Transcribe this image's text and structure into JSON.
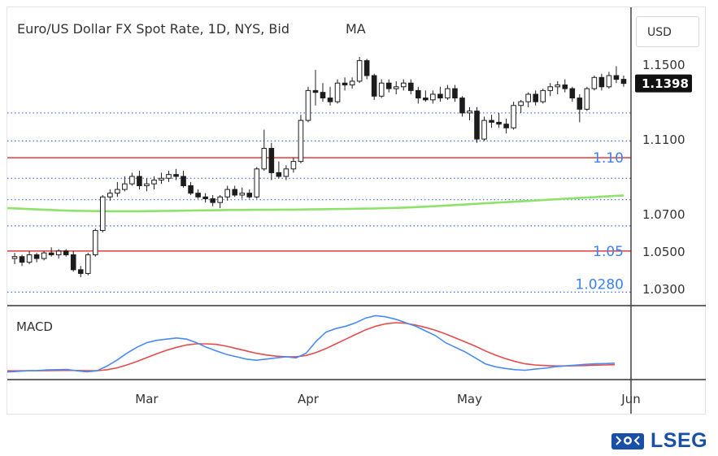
{
  "header": {
    "title": "Euro/US Dollar FX Spot Rate, 1D, NYS, Bid",
    "indicator": "MA",
    "currency": "USD",
    "last_price": "1.1398"
  },
  "subchart": {
    "label": "MACD"
  },
  "brand": {
    "name": "LSEG",
    "color": "#1a4fa8"
  },
  "colors": {
    "ma_line": "#8ee26a",
    "level_line": "#e34b4b",
    "level_label": "#3b82f6",
    "dotted": "#3b6fe0",
    "macd": "#4a8af4",
    "signal": "#e54b4b",
    "candle_up": "#ffffff",
    "candle_down": "#1c1c1c"
  },
  "chart_data": {
    "type": "candlestick",
    "title": "Euro/US Dollar FX Spot Rate, 1D, NYS, Bid",
    "ylim": [
      1.0225,
      1.1575
    ],
    "price_ticks": [
      "1.1500",
      "1.1100",
      "1.0700",
      "1.0500",
      "1.0300"
    ],
    "x_ticks": [
      {
        "label": "Mar",
        "index": 18
      },
      {
        "label": "Apr",
        "index": 40
      },
      {
        "label": "May",
        "index": 62
      },
      {
        "label": "Jun",
        "index": 84
      }
    ],
    "levels": [
      {
        "value": 1.1,
        "label": "1.10"
      },
      {
        "value": 1.05,
        "label": "1.05"
      }
    ],
    "level_annotations": [
      {
        "value": 1.028,
        "label": "1.0280"
      }
    ],
    "dotted_levels": [
      1.124,
      1.109,
      1.089,
      1.0775,
      1.0635,
      1.028
    ],
    "ohlc": [
      [
        1.046,
        1.049,
        1.043,
        1.047
      ],
      [
        1.047,
        1.048,
        1.042,
        1.044
      ],
      [
        1.044,
        1.05,
        1.043,
        1.048
      ],
      [
        1.048,
        1.049,
        1.044,
        1.046
      ],
      [
        1.046,
        1.05,
        1.045,
        1.049
      ],
      [
        1.049,
        1.052,
        1.047,
        1.048
      ],
      [
        1.048,
        1.051,
        1.046,
        1.05
      ],
      [
        1.05,
        1.051,
        1.047,
        1.048
      ],
      [
        1.048,
        1.05,
        1.039,
        1.04
      ],
      [
        1.04,
        1.042,
        1.036,
        1.038
      ],
      [
        1.038,
        1.049,
        1.037,
        1.048
      ],
      [
        1.048,
        1.062,
        1.047,
        1.061
      ],
      [
        1.061,
        1.08,
        1.06,
        1.079
      ],
      [
        1.079,
        1.083,
        1.077,
        1.081
      ],
      [
        1.081,
        1.087,
        1.079,
        1.083
      ],
      [
        1.083,
        1.09,
        1.082,
        1.086
      ],
      [
        1.086,
        1.092,
        1.085,
        1.09
      ],
      [
        1.09,
        1.093,
        1.083,
        1.085
      ],
      [
        1.085,
        1.089,
        1.082,
        1.086
      ],
      [
        1.086,
        1.09,
        1.083,
        1.088
      ],
      [
        1.088,
        1.092,
        1.086,
        1.089
      ],
      [
        1.089,
        1.093,
        1.087,
        1.091
      ],
      [
        1.091,
        1.094,
        1.088,
        1.09
      ],
      [
        1.09,
        1.093,
        1.084,
        1.085
      ],
      [
        1.085,
        1.087,
        1.08,
        1.081
      ],
      [
        1.081,
        1.083,
        1.078,
        1.079
      ],
      [
        1.079,
        1.081,
        1.076,
        1.078
      ],
      [
        1.078,
        1.08,
        1.074,
        1.076
      ],
      [
        1.076,
        1.08,
        1.073,
        1.079
      ],
      [
        1.079,
        1.085,
        1.077,
        1.083
      ],
      [
        1.083,
        1.085,
        1.079,
        1.08
      ],
      [
        1.08,
        1.084,
        1.078,
        1.081
      ],
      [
        1.081,
        1.083,
        1.078,
        1.079
      ],
      [
        1.079,
        1.095,
        1.078,
        1.094
      ],
      [
        1.094,
        1.115,
        1.093,
        1.105
      ],
      [
        1.105,
        1.108,
        1.088,
        1.092
      ],
      [
        1.092,
        1.098,
        1.089,
        1.09
      ],
      [
        1.09,
        1.096,
        1.088,
        1.094
      ],
      [
        1.094,
        1.1,
        1.092,
        1.098
      ],
      [
        1.098,
        1.123,
        1.097,
        1.12
      ],
      [
        1.12,
        1.138,
        1.119,
        1.136
      ],
      [
        1.136,
        1.147,
        1.128,
        1.135
      ],
      [
        1.135,
        1.14,
        1.13,
        1.132
      ],
      [
        1.132,
        1.138,
        1.128,
        1.13
      ],
      [
        1.13,
        1.142,
        1.129,
        1.14
      ],
      [
        1.14,
        1.143,
        1.136,
        1.139
      ],
      [
        1.139,
        1.143,
        1.137,
        1.141
      ],
      [
        1.141,
        1.154,
        1.14,
        1.152
      ],
      [
        1.152,
        1.153,
        1.142,
        1.144
      ],
      [
        1.144,
        1.145,
        1.131,
        1.133
      ],
      [
        1.133,
        1.142,
        1.132,
        1.14
      ],
      [
        1.14,
        1.142,
        1.135,
        1.137
      ],
      [
        1.137,
        1.141,
        1.134,
        1.138
      ],
      [
        1.138,
        1.142,
        1.136,
        1.14
      ],
      [
        1.14,
        1.142,
        1.134,
        1.136
      ],
      [
        1.136,
        1.138,
        1.129,
        1.132
      ],
      [
        1.132,
        1.136,
        1.13,
        1.131
      ],
      [
        1.131,
        1.136,
        1.129,
        1.134
      ],
      [
        1.134,
        1.138,
        1.13,
        1.132
      ],
      [
        1.132,
        1.139,
        1.131,
        1.137
      ],
      [
        1.137,
        1.139,
        1.13,
        1.132
      ],
      [
        1.132,
        1.133,
        1.122,
        1.124
      ],
      [
        1.124,
        1.127,
        1.12,
        1.125
      ],
      [
        1.125,
        1.127,
        1.108,
        1.11
      ],
      [
        1.11,
        1.122,
        1.109,
        1.12
      ],
      [
        1.12,
        1.123,
        1.116,
        1.119
      ],
      [
        1.119,
        1.124,
        1.116,
        1.118
      ],
      [
        1.118,
        1.121,
        1.113,
        1.116
      ],
      [
        1.116,
        1.13,
        1.115,
        1.128
      ],
      [
        1.128,
        1.131,
        1.124,
        1.13
      ],
      [
        1.13,
        1.135,
        1.127,
        1.134
      ],
      [
        1.134,
        1.136,
        1.128,
        1.13
      ],
      [
        1.13,
        1.137,
        1.129,
        1.136
      ],
      [
        1.136,
        1.14,
        1.133,
        1.138
      ],
      [
        1.138,
        1.141,
        1.134,
        1.139
      ],
      [
        1.139,
        1.142,
        1.135,
        1.137
      ],
      [
        1.137,
        1.138,
        1.13,
        1.132
      ],
      [
        1.132,
        1.134,
        1.119,
        1.126
      ],
      [
        1.126,
        1.138,
        1.125,
        1.137
      ],
      [
        1.137,
        1.144,
        1.136,
        1.143
      ],
      [
        1.143,
        1.145,
        1.136,
        1.138
      ],
      [
        1.138,
        1.146,
        1.137,
        1.144
      ],
      [
        1.144,
        1.149,
        1.14,
        1.142
      ],
      [
        1.142,
        1.144,
        1.138,
        1.1398
      ]
    ],
    "ma": [
      1.073,
      1.0727,
      1.0724,
      1.0721,
      1.0718,
      1.0716,
      1.0715,
      1.0714,
      1.0713,
      1.0713,
      1.0713,
      1.0714,
      1.0715,
      1.0716,
      1.0717,
      1.0718,
      1.0719,
      1.072,
      1.072,
      1.0721,
      1.0721,
      1.0722,
      1.0722,
      1.0723,
      1.0724,
      1.0725,
      1.0726,
      1.0727,
      1.0728,
      1.073,
      1.0732,
      1.0735,
      1.0738,
      1.0742,
      1.0746,
      1.075,
      1.0754,
      1.0758,
      1.0762,
      1.0766,
      1.077,
      1.0774,
      1.0778,
      1.0782,
      1.0786,
      1.079,
      1.0794,
      1.0798
    ],
    "macd": [
      -0.004,
      -0.0035,
      -0.003,
      -0.0028,
      -0.0022,
      -0.002,
      -0.0018,
      -0.003,
      -0.0038,
      -0.003,
      0.001,
      0.006,
      0.012,
      0.017,
      0.021,
      0.023,
      0.024,
      0.025,
      0.024,
      0.021,
      0.017,
      0.014,
      0.011,
      0.009,
      0.007,
      0.006,
      0.007,
      0.008,
      0.009,
      0.008,
      0.012,
      0.022,
      0.03,
      0.033,
      0.035,
      0.038,
      0.042,
      0.044,
      0.043,
      0.041,
      0.038,
      0.035,
      0.031,
      0.027,
      0.021,
      0.017,
      0.013,
      0.008,
      0.003,
      0.0005,
      -0.001,
      -0.002,
      -0.0025,
      -0.0015,
      -0.0008,
      0.0005,
      0.0012,
      0.0018,
      0.0025,
      0.003,
      0.0032,
      0.0035
    ],
    "signal": [
      -0.003,
      -0.003,
      -0.0029,
      -0.0029,
      -0.0028,
      -0.0027,
      -0.0026,
      -0.0027,
      -0.0029,
      -0.0029,
      -0.0021,
      -0.0005,
      0.002,
      0.005,
      0.0082,
      0.0115,
      0.0145,
      0.017,
      0.019,
      0.02,
      0.02,
      0.0195,
      0.018,
      0.016,
      0.014,
      0.012,
      0.0105,
      0.0095,
      0.009,
      0.009,
      0.01,
      0.0125,
      0.016,
      0.02,
      0.024,
      0.028,
      0.032,
      0.035,
      0.037,
      0.038,
      0.0375,
      0.036,
      0.034,
      0.0315,
      0.0285,
      0.025,
      0.0215,
      0.018,
      0.014,
      0.0105,
      0.0075,
      0.005,
      0.003,
      0.002,
      0.0015,
      0.0012,
      0.0012,
      0.0013,
      0.0015,
      0.0018,
      0.002,
      0.0022
    ],
    "macd_ylim": [
      -0.007,
      0.047
    ]
  }
}
